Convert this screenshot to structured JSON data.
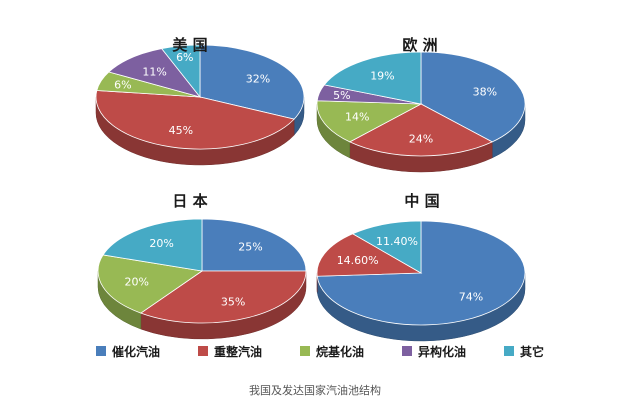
{
  "legend": [
    {
      "key": "cat",
      "label": "催化汽油",
      "color": "#4a7ebb"
    },
    {
      "key": "ref",
      "label": "重整汽油",
      "color": "#be4b48"
    },
    {
      "key": "alk",
      "label": "烷基化油",
      "color": "#98b954"
    },
    {
      "key": "iso",
      "label": "异构化油",
      "color": "#7d60a0"
    },
    {
      "key": "oth",
      "label": "其它",
      "color": "#46aac5"
    }
  ],
  "chart_data": [
    {
      "type": "pie",
      "title": "美 国",
      "slices": [
        {
          "category": "催化汽油",
          "value": 32,
          "label": "32%"
        },
        {
          "category": "重整汽油",
          "value": 45,
          "label": "45%"
        },
        {
          "category": "烷基化油",
          "value": 6,
          "label": "6%"
        },
        {
          "category": "异构化油",
          "value": 11,
          "label": "11%"
        },
        {
          "category": "其它",
          "value": 6,
          "label": "6%"
        }
      ]
    },
    {
      "type": "pie",
      "title": "欧 洲",
      "slices": [
        {
          "category": "催化汽油",
          "value": 38,
          "label": "38%"
        },
        {
          "category": "重整汽油",
          "value": 24,
          "label": "24%"
        },
        {
          "category": "烷基化油",
          "value": 14,
          "label": "14%"
        },
        {
          "category": "异构化油",
          "value": 5,
          "label": "5%"
        },
        {
          "category": "其它",
          "value": 19,
          "label": "19%"
        }
      ]
    },
    {
      "type": "pie",
      "title": "日 本",
      "slices": [
        {
          "category": "催化汽油",
          "value": 25,
          "label": "25%"
        },
        {
          "category": "重整汽油",
          "value": 35,
          "label": "35%"
        },
        {
          "category": "烷基化油",
          "value": 20,
          "label": "20%"
        },
        {
          "category": "其它",
          "value": 20,
          "label": "20%"
        }
      ]
    },
    {
      "type": "pie",
      "title": "中 国",
      "slices": [
        {
          "category": "催化汽油",
          "value": 74,
          "label": "74%"
        },
        {
          "category": "重整汽油",
          "value": 14.6,
          "label": "14.60%"
        },
        {
          "category": "其它",
          "value": 11.4,
          "label": "11.40%"
        }
      ]
    }
  ],
  "caption": "我国及发达国家汽油池结构"
}
